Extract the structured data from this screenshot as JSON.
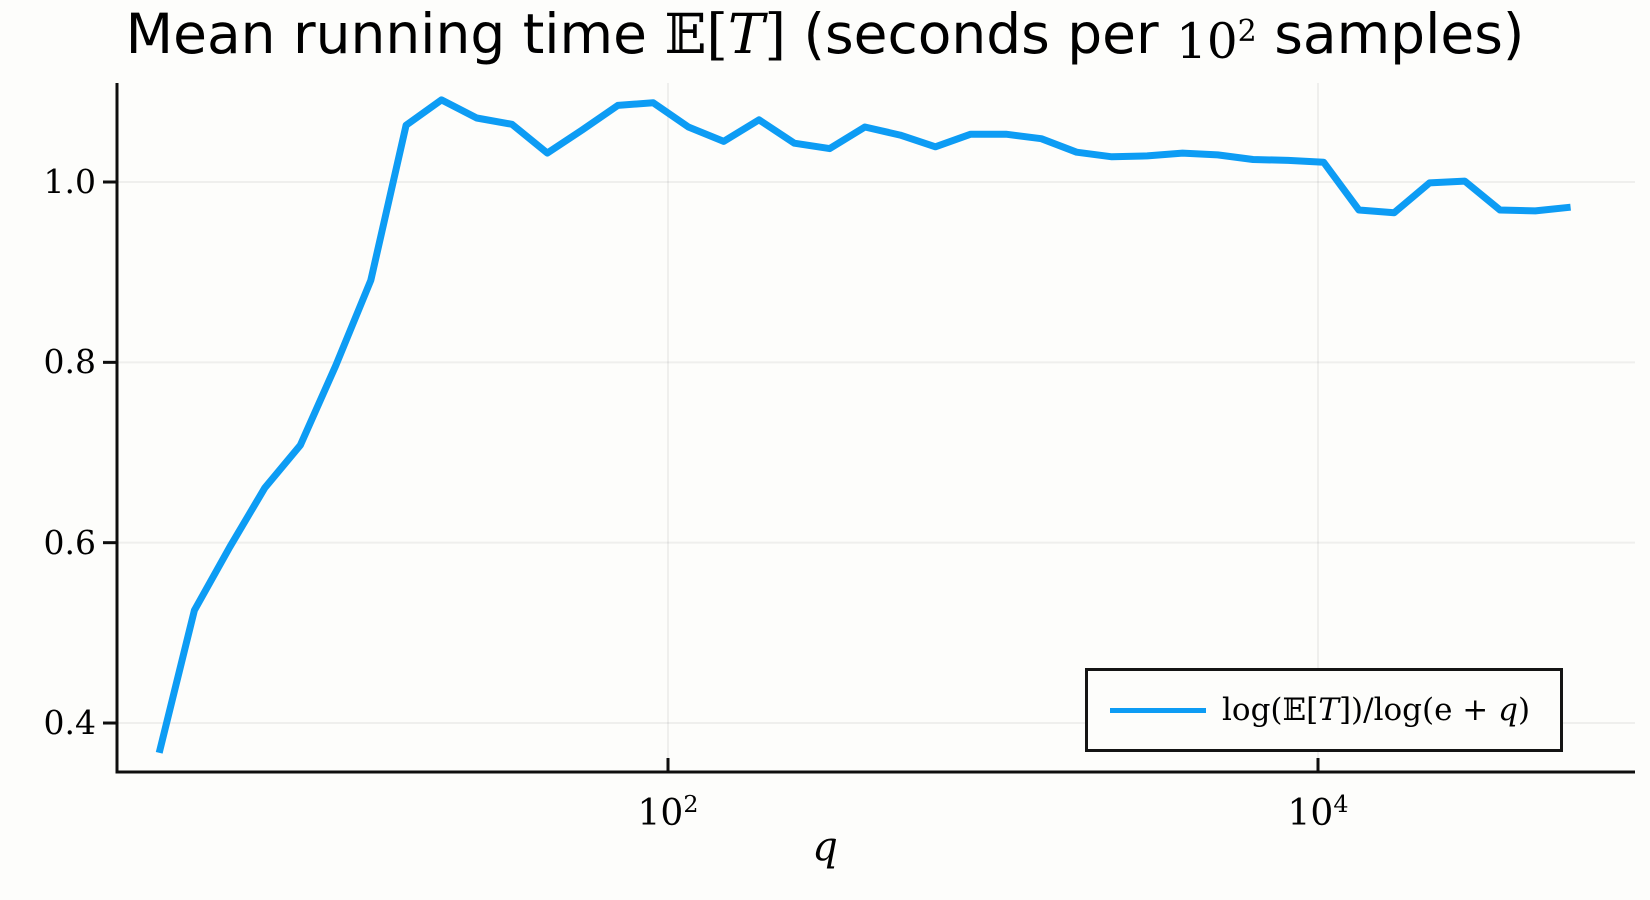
{
  "title": {
    "prefix": "Mean running time ",
    "math_open": "𝔼[",
    "math_T": "T",
    "math_close": "]",
    "mid": " (seconds per ",
    "pow_base": "10",
    "pow_exp": "2",
    "suffix": " samples)"
  },
  "axes": {
    "xlabel": "q",
    "yticks": [
      {
        "value": 1.0,
        "label": "1.0"
      },
      {
        "value": 0.8,
        "label": "0.8"
      },
      {
        "value": 0.6,
        "label": "0.6"
      },
      {
        "value": 0.4,
        "label": "0.4"
      }
    ],
    "xticks": [
      {
        "value": 100,
        "base": "10",
        "exp": "2"
      },
      {
        "value": 10000,
        "base": "10",
        "exp": "4"
      }
    ]
  },
  "legend": {
    "pre": "log(𝔼[",
    "T": "T",
    "mid": "])/log(e + ",
    "qvar": "q",
    "post": ")"
  },
  "colors": {
    "series": "#0d9cf4",
    "spine": "#0e0e0e",
    "grid": "rgba(0,0,0,0.055)",
    "background": "#fdfdfb"
  },
  "chart_data": {
    "type": "line",
    "title": "Mean running time E[T] (seconds per 10^2 samples)",
    "xlabel": "q",
    "ylabel": "",
    "x_scale": "log10",
    "xlim": [
      2,
      96000
    ],
    "ylim": [
      0.35,
      1.11
    ],
    "xticks": [
      100,
      10000
    ],
    "yticks": [
      0.4,
      0.6,
      0.8,
      1.0
    ],
    "grid": true,
    "legend_position": "bottom-right",
    "series": [
      {
        "name": "log(E[T])/log(e + q)",
        "color": "#0d9cf4",
        "x": [
          2.72,
          3.49,
          4.48,
          5.75,
          7.39,
          9.49,
          12.18,
          15.64,
          20.09,
          25.79,
          33.12,
          42.52,
          54.6,
          70.11,
          90.02,
          115.58,
          148.41,
          190.57,
          244.69,
          314.19,
          403.43,
          518.01,
          665.14,
          854.06,
          1096.63,
          1408.1,
          1808.04,
          2321.57,
          2980.96,
          3827.63,
          4914.77,
          6310.69,
          8103.08,
          10404.57,
          13359.73,
          17154.23,
          22026.47,
          28282.54,
          36315.5,
          46630.03,
          59874.14
        ],
        "y": [
          0.367,
          0.525,
          0.595,
          0.661,
          0.708,
          0.796,
          0.891,
          1.063,
          1.091,
          1.071,
          1.064,
          1.032,
          1.058,
          1.085,
          1.088,
          1.061,
          1.045,
          1.069,
          1.043,
          1.037,
          1.061,
          1.052,
          1.039,
          1.053,
          1.053,
          1.048,
          1.033,
          1.028,
          1.029,
          1.032,
          1.03,
          1.025,
          1.024,
          1.022,
          0.969,
          0.966,
          0.999,
          1.001,
          0.969,
          0.968,
          0.972
        ]
      }
    ]
  }
}
